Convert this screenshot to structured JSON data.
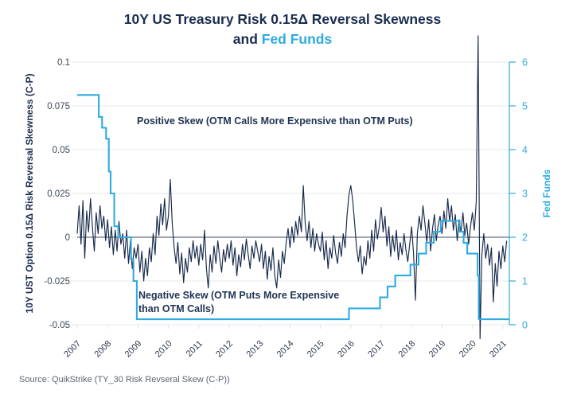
{
  "title": {
    "line1": "10Y US Treasury Risk 0.15Δ Reversal Skewness",
    "line2_prefix": "and ",
    "line2_highlight": "Fed Funds"
  },
  "source": "Source: QuikStrike (TY_30 Risk Revseral Skew (C-P))",
  "colors": {
    "navy": "#1b2d4f",
    "line_navy": "#17294a",
    "blue": "#2fabe1",
    "grid": "#e6e8ea",
    "zero_line": "#6a7280",
    "left_tick_text": "#3d4857",
    "x_tick_text": "#2e3b4e",
    "source_text": "#5d6470"
  },
  "chart_data": {
    "type": "line",
    "title": "10Y US Treasury Risk 0.15Δ Reversal Skewness and Fed Funds",
    "legend_position": "none",
    "grid": "horizontal",
    "left_axis": {
      "label": "10Y UST Option 0.15Δ Risk Reversal Skewness  (C-P)",
      "range": [
        -0.05,
        0.1
      ],
      "ticks": [
        0.1,
        0.075,
        0.05,
        0.025,
        0,
        -0.025,
        -0.05
      ],
      "tick_labels": [
        "0.1",
        "0.075",
        "0.05",
        "0.025",
        "0",
        "-0.025",
        "-0.05"
      ]
    },
    "right_axis": {
      "label": "Fed Funds",
      "range": [
        0,
        6
      ],
      "ticks": [
        6,
        5,
        4,
        3,
        2,
        1,
        0
      ],
      "tick_labels": [
        "6",
        "5",
        "4",
        "3",
        "2",
        "1",
        "0"
      ]
    },
    "x_axis": {
      "range": [
        2007,
        2021.3
      ],
      "ticks": [
        2007,
        2008,
        2009,
        2010,
        2011,
        2012,
        2013,
        2014,
        2015,
        2016,
        2017,
        2018,
        2019,
        2020,
        2021
      ]
    },
    "annotations": {
      "positive": "Positive Skew (OTM Calls More Expensive than OTM Puts)",
      "negative_line1": "Negative Skew (OTM Puts More Expensive",
      "negative_line2": "than OTM Calls)"
    },
    "series": [
      {
        "name": "10Y UST Option 0.15Δ Risk Reversal Skewness (C-P)",
        "axis": "left",
        "style": "line",
        "color_key": "line_navy",
        "t0": 2007.0,
        "dt": 0.0625,
        "values": [
          0.002,
          0.018,
          -0.004,
          0.021,
          -0.012,
          0.015,
          0.003,
          0.022,
          0.006,
          -0.008,
          0.014,
          0.002,
          0.018,
          0.005,
          0.012,
          -0.002,
          0.01,
          -0.006,
          0.006,
          -0.01,
          0.004,
          -0.008,
          0.009,
          -0.004,
          0.002,
          -0.012,
          0.004,
          -0.015,
          -0.002,
          -0.018,
          -0.006,
          -0.012,
          -0.004,
          -0.02,
          -0.008,
          -0.025,
          -0.012,
          -0.022,
          -0.006,
          -0.014,
          0.002,
          -0.01,
          0.012,
          0.001,
          0.019,
          0.007,
          0.022,
          0.004,
          0.012,
          0.033,
          0.008,
          -0.006,
          -0.015,
          -0.003,
          -0.021,
          -0.009,
          -0.026,
          -0.012,
          -0.02,
          -0.006,
          -0.014,
          -0.002,
          -0.012,
          -0.005,
          -0.016,
          -0.004,
          -0.013,
          0.004,
          -0.018,
          -0.029,
          -0.01,
          -0.02,
          -0.005,
          -0.015,
          -0.002,
          -0.012,
          -0.02,
          -0.007,
          -0.014,
          -0.004,
          -0.012,
          -0.002,
          -0.016,
          -0.006,
          -0.022,
          -0.01,
          -0.017,
          -0.004,
          -0.013,
          -0.001,
          -0.01,
          -0.018,
          -0.005,
          -0.012,
          -0.002,
          -0.008,
          -0.014,
          -0.004,
          -0.018,
          -0.008,
          -0.024,
          -0.011,
          -0.019,
          -0.006,
          -0.022,
          -0.029,
          -0.013,
          -0.023,
          -0.008,
          -0.015,
          -0.003,
          0.005,
          -0.006,
          0.006,
          -0.003,
          0.009,
          0.001,
          0.012,
          0.003,
          0.0295,
          0.008,
          -0.002,
          0.009,
          -0.006,
          0.005,
          -0.008,
          0.002,
          -0.004,
          -0.008,
          0.003,
          -0.013,
          -0.002,
          -0.018,
          -0.006,
          -0.012,
          0.001,
          -0.009,
          -0.015,
          -0.003,
          -0.011,
          0.002,
          -0.006,
          0.012,
          0.024,
          0.0295,
          0.021,
          0.008,
          -0.006,
          -0.014,
          -0.005,
          -0.021,
          -0.011,
          -0.016,
          -0.002,
          -0.012,
          0.004,
          -0.008,
          0.01,
          -0.001,
          0.006,
          0.017,
          0.003,
          0.012,
          -0.005,
          0.006,
          -0.011,
          0.001,
          -0.008,
          0.004,
          -0.013,
          -0.003,
          -0.01,
          0.002,
          -0.007,
          -0.014,
          -0.004,
          0.006,
          -0.009,
          -0.036,
          0.002,
          0.012,
          0.004,
          0.018,
          0.008,
          -0.003,
          0.01,
          -0.008,
          0.005,
          0.013,
          -0.002,
          0.007,
          0.012,
          0.002,
          0.015,
          0.005,
          0.022,
          0.009,
          0.018,
          0.004,
          0.013,
          -0.002,
          0.01,
          0.003,
          0.014,
          0.001,
          0.008,
          -0.004,
          0.006,
          0.014,
          0.004,
          0.02,
          0.115,
          -0.058,
          -0.01,
          0.002,
          -0.012,
          -0.004,
          -0.016,
          -0.006,
          -0.037,
          -0.015,
          -0.028,
          -0.008,
          -0.018,
          -0.005,
          -0.014,
          -0.002
        ]
      },
      {
        "name": "Fed Funds",
        "axis": "right",
        "style": "step",
        "color_key": "blue",
        "points": [
          [
            2007.0,
            5.25
          ],
          [
            2007.71,
            4.75
          ],
          [
            2007.82,
            4.5
          ],
          [
            2007.95,
            4.25
          ],
          [
            2008.04,
            3.5
          ],
          [
            2008.1,
            3.0
          ],
          [
            2008.22,
            2.25
          ],
          [
            2008.35,
            2.0
          ],
          [
            2008.77,
            1.5
          ],
          [
            2008.85,
            1.0
          ],
          [
            2008.96,
            0.125
          ],
          [
            2015.94,
            0.375
          ],
          [
            2016.96,
            0.625
          ],
          [
            2017.21,
            0.875
          ],
          [
            2017.46,
            1.125
          ],
          [
            2017.96,
            1.375
          ],
          [
            2018.23,
            1.625
          ],
          [
            2018.48,
            1.875
          ],
          [
            2018.73,
            2.125
          ],
          [
            2018.96,
            2.375
          ],
          [
            2019.58,
            2.125
          ],
          [
            2019.71,
            1.875
          ],
          [
            2019.83,
            1.625
          ],
          [
            2020.17,
            1.125
          ],
          [
            2020.21,
            0.125
          ],
          [
            2021.22,
            0.125
          ]
        ]
      }
    ]
  }
}
